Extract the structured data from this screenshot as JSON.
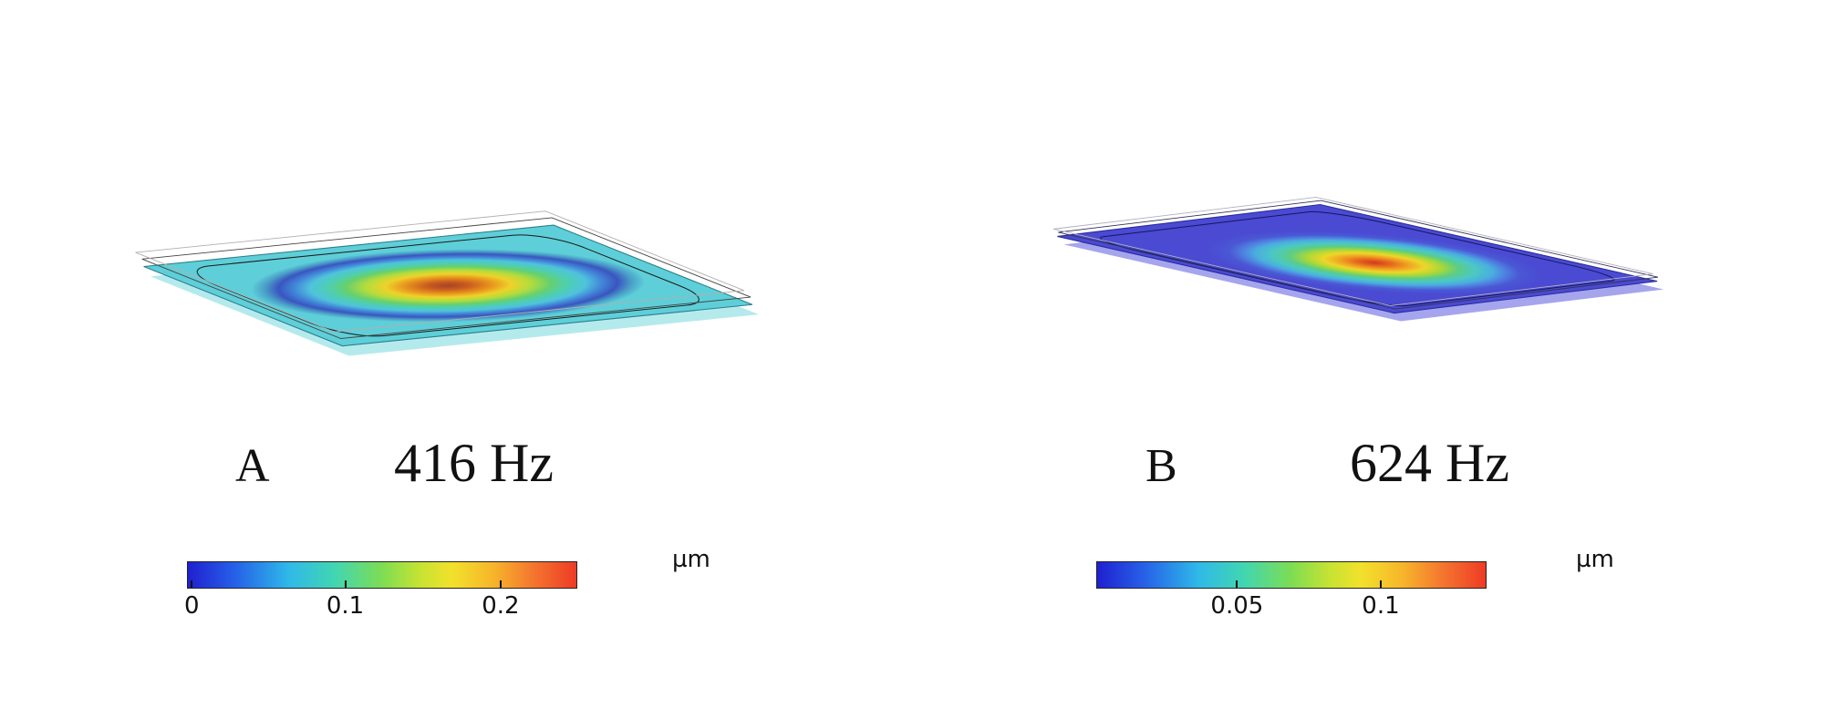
{
  "figure_type": "modal analysis surface plots (two panels)",
  "colors": {
    "background": "#ffffff",
    "colormap_low": "#2020d0",
    "colormap_high": "#ee3b25",
    "plate_a_base": "#5ecfd8",
    "plate_b_base": "#4a4ad2"
  },
  "panels": [
    {
      "label": "A",
      "frequency": "416 Hz",
      "unit": "µm"
    },
    {
      "label": "B",
      "frequency": "624 Hz",
      "unit": "µm"
    }
  ],
  "chart_data": [
    {
      "type": "heatmap",
      "panel": "A",
      "title": "416 Hz",
      "plot": "3D deformed surface plot of plate/membrane fundamental mode, displacement peak at center",
      "unit": "µm",
      "colormap": "rainbow (blue low to red high)",
      "colorbar": {
        "orientation": "horizontal",
        "tick_labels": [
          "0",
          "0.1",
          "0.2"
        ],
        "tick_values": [
          0,
          0.1,
          0.2
        ],
        "tick_positions_pct": [
          1,
          40.5,
          80.5
        ],
        "range": [
          0,
          0.25
        ]
      }
    },
    {
      "type": "heatmap",
      "panel": "B",
      "title": "624 Hz",
      "plot": "3D deformed surface plot of plate/membrane mode, displacement peak near center",
      "unit": "µm",
      "colormap": "rainbow (blue low to red high)",
      "colorbar": {
        "orientation": "horizontal",
        "tick_labels": [
          "0.05",
          "0.1"
        ],
        "tick_values": [
          0.05,
          0.1
        ],
        "tick_positions_pct": [
          36,
          73
        ],
        "range": [
          0,
          0.137
        ]
      }
    }
  ]
}
